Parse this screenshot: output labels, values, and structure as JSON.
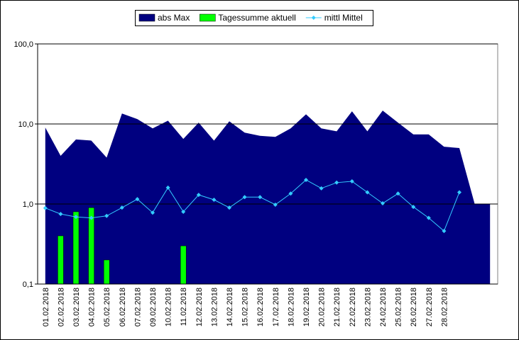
{
  "chart_data": {
    "type": "combo",
    "log_scale": true,
    "grid": true,
    "legend": "top",
    "categories": [
      "01.02.2018",
      "02.02.2018",
      "03.02.2018",
      "04.02.2018",
      "05.02.2018",
      "06.02.2018",
      "07.02.2018",
      "09.02.2018",
      "10.02.2018",
      "11.02.2018",
      "12.02.2018",
      "13.02.2018",
      "14.02.2018",
      "15.02.2018",
      "16.02.2018",
      "17.02.2018",
      "18.02.2018",
      "19.02.2018",
      "20.02.2018",
      "21.02.2018",
      "22.02.2018",
      "23.02.2018",
      "24.02.2018",
      "25.02.2018",
      "26.02.2018",
      "27.02.2018",
      "28.02.2018",
      null,
      null,
      null
    ],
    "series": [
      {
        "name": "abs Max",
        "type": "area",
        "color": "#000080",
        "values": [
          9.0,
          4.0,
          6.4,
          6.2,
          3.8,
          13.5,
          11.5,
          8.8,
          11.0,
          6.5,
          10.4,
          6.2,
          10.8,
          7.8,
          7.1,
          6.9,
          8.8,
          13.2,
          8.8,
          8.1,
          14.4,
          8.1,
          14.7,
          10.4,
          7.4,
          7.4,
          5.2,
          5.0,
          1.0,
          1.0
        ]
      },
      {
        "name": "Tagessumme aktuell",
        "type": "bar",
        "color": "#00ff00",
        "values": [
          null,
          0.4,
          0.8,
          0.9,
          0.2,
          null,
          null,
          null,
          null,
          0.3,
          null,
          null,
          null,
          null,
          null,
          null,
          null,
          null,
          null,
          null,
          null,
          null,
          null,
          null,
          null,
          null,
          null,
          null,
          null,
          null
        ]
      },
      {
        "name": "mittl Mittel",
        "type": "line",
        "color": "#33ccff",
        "values": [
          0.89,
          0.75,
          0.69,
          0.67,
          0.71,
          0.9,
          1.15,
          0.78,
          1.6,
          0.8,
          1.3,
          1.13,
          0.9,
          1.22,
          1.22,
          0.98,
          1.35,
          2.0,
          1.57,
          1.85,
          1.92,
          1.4,
          1.02,
          1.35,
          0.92,
          0.67,
          0.46,
          1.4,
          null,
          null
        ]
      }
    ],
    "ylim": [
      0.1,
      100
    ],
    "yticks": [
      {
        "value": 0.1,
        "label": "0,1"
      },
      {
        "value": 1,
        "label": "1,0"
      },
      {
        "value": 10,
        "label": "10,0"
      },
      {
        "value": 100,
        "label": "100,0"
      }
    ]
  }
}
